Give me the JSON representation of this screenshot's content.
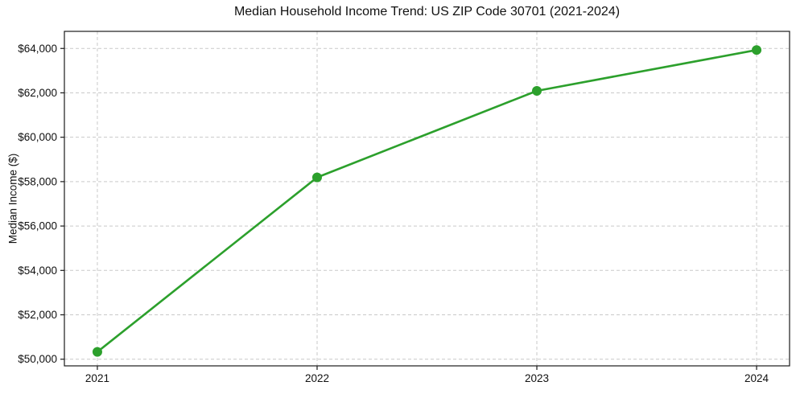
{
  "chart_data": {
    "type": "line",
    "title": "Median Household Income Trend: US ZIP Code 30701 (2021-2024)",
    "xlabel": "",
    "ylabel": "Median Income ($)",
    "x": [
      2021,
      2022,
      2023,
      2024
    ],
    "xtick_labels": [
      "2021",
      "2022",
      "2023",
      "2024"
    ],
    "values": [
      50330,
      58190,
      62090,
      63930
    ],
    "yticks": [
      50000,
      52000,
      54000,
      56000,
      58000,
      60000,
      62000,
      64000
    ],
    "ytick_labels": [
      "$50,000",
      "$52,000",
      "$54,000",
      "$56,000",
      "$58,000",
      "$60,000",
      "$62,000",
      "$64,000"
    ],
    "xlim": [
      2020.85,
      2024.15
    ],
    "ylim": [
      49700,
      64770
    ],
    "grid": true,
    "grid_style": "dashed",
    "legend_position": "none",
    "line_color": "#2ca02c",
    "marker": "circle",
    "marker_color": "#2ca02c",
    "grid_color": "#c9c9c9",
    "axis_color": "#1a1a1a",
    "text_color": "#111111",
    "background_color": "#ffffff"
  }
}
